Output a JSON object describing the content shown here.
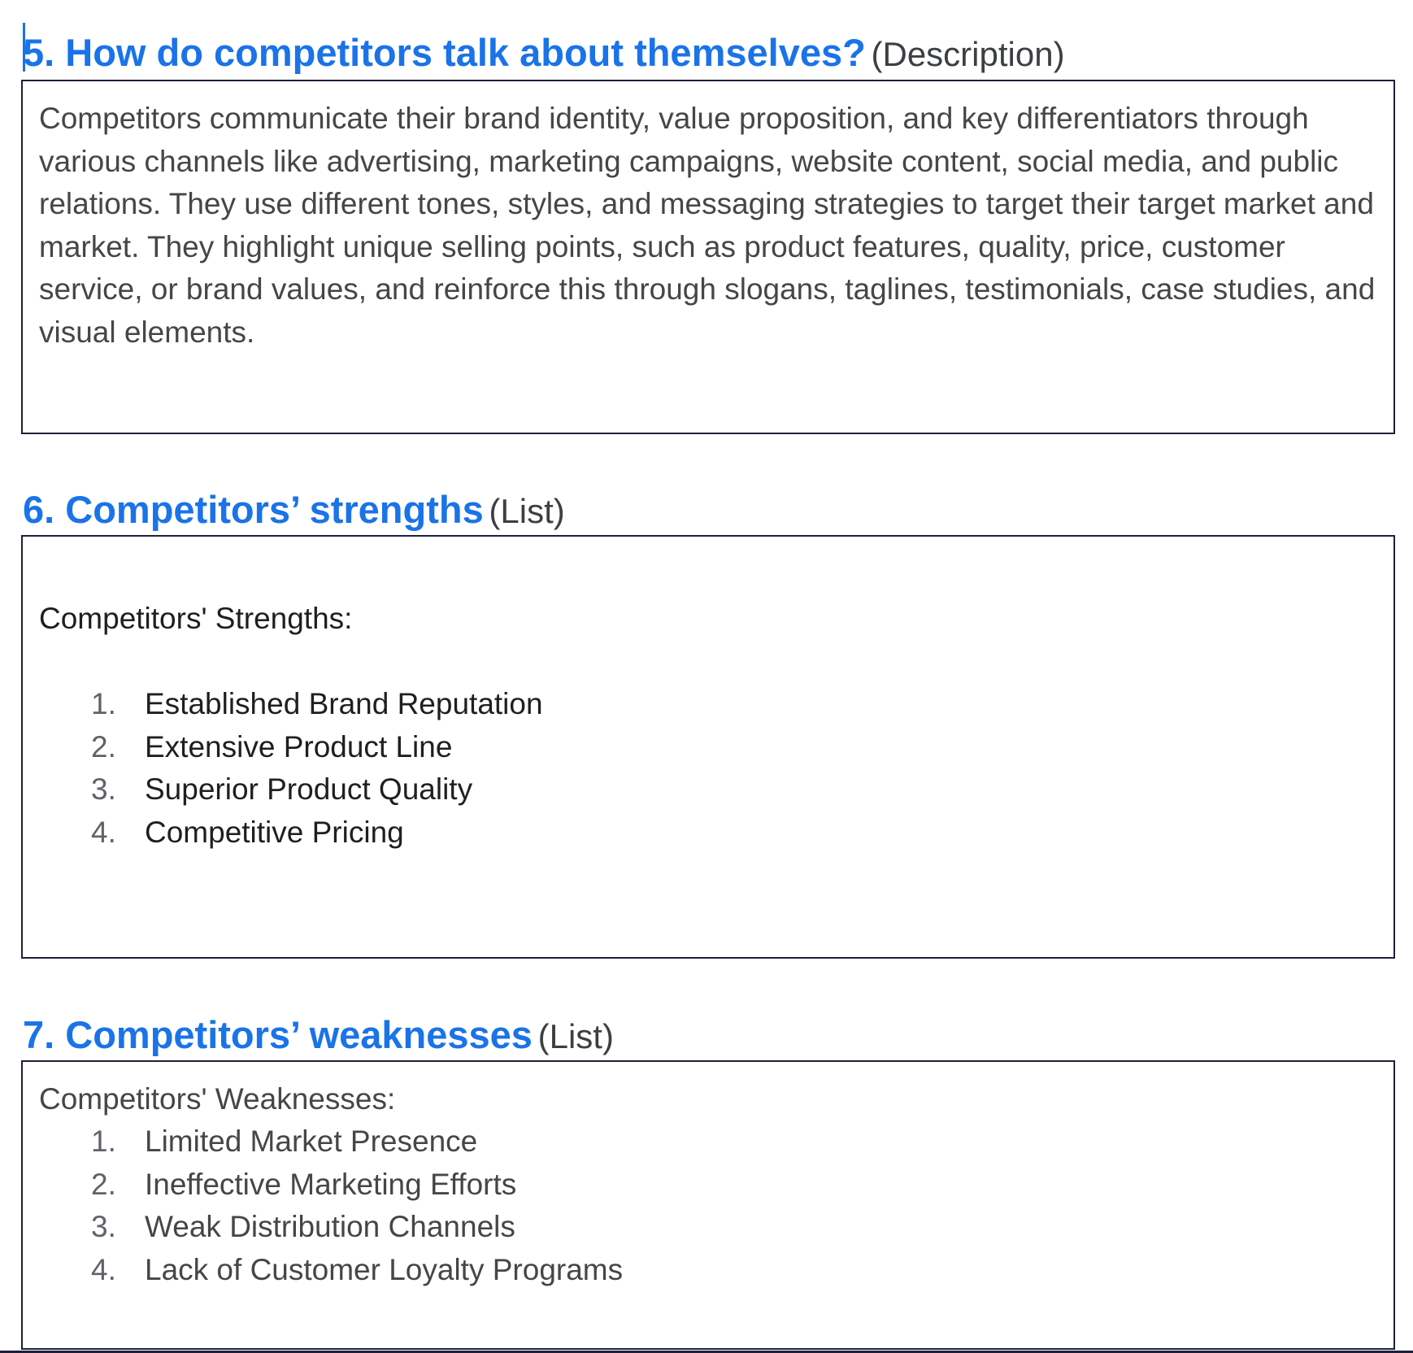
{
  "sections": [
    {
      "heading": "5. How do competitors talk about themselves?",
      "type_label": "(Description)",
      "body": "Competitors communicate their brand identity, value proposition, and key differentiators through various channels like advertising, marketing campaigns, website content, social media, and public relations. They use different tones, styles, and messaging strategies to target their target market and market. They highlight unique selling points, such as product features, quality, price, customer service, or brand values, and reinforce this through slogans, taglines, testimonials, case studies, and visual elements."
    },
    {
      "heading": "6. Competitors’ strengths",
      "type_label": "(List)",
      "list_label": "Competitors' Strengths:",
      "items": [
        {
          "num": "1.",
          "text": "Established Brand Reputation"
        },
        {
          "num": "2.",
          "text": "Extensive Product Line"
        },
        {
          "num": "3.",
          "text": "Superior Product Quality"
        },
        {
          "num": "4.",
          "text": "Competitive Pricing"
        }
      ]
    },
    {
      "heading": "7. Competitors’ weaknesses",
      "type_label": "(List)",
      "list_label": "Competitors' Weaknesses:",
      "items": [
        {
          "num": "1.",
          "text": "Limited Market Presence"
        },
        {
          "num": "2.",
          "text": "Ineffective Marketing Efforts"
        },
        {
          "num": "3.",
          "text": "Weak Distribution Channels"
        },
        {
          "num": "4.",
          "text": "Lack of Customer Loyalty Programs"
        }
      ]
    }
  ],
  "colors": {
    "heading": "#1a73e8",
    "type_label": "#3c4043",
    "body_text": "#444746",
    "border": "#1f1f3a"
  }
}
